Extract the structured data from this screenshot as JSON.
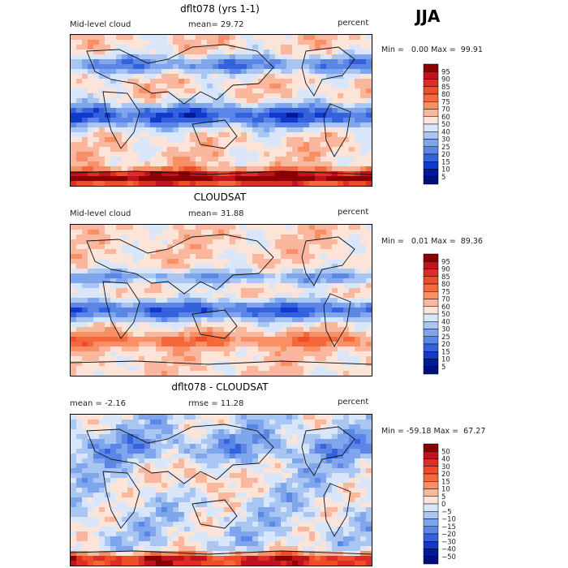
{
  "season": "JJA",
  "panels": [
    {
      "title": "dflt078 (yrs 1-1)",
      "left_label": "Mid-level cloud",
      "mean_label": "mean=  29.72",
      "units": "percent",
      "minmax": "Min =   0.00 Max =  99.91",
      "colorbar_levels": [
        "95",
        "90",
        "85",
        "80",
        "75",
        "70",
        "60",
        "50",
        "40",
        "30",
        "25",
        "20",
        "15",
        "10",
        "5"
      ]
    },
    {
      "title": "CLOUDSAT",
      "left_label": "Mid-level cloud",
      "mean_label": "mean=  31.88",
      "units": "percent",
      "minmax": "Min =   0.01 Max =  89.36",
      "colorbar_levels": [
        "95",
        "90",
        "85",
        "80",
        "75",
        "70",
        "60",
        "50",
        "40",
        "30",
        "25",
        "20",
        "15",
        "10",
        "5"
      ]
    },
    {
      "title": "dflt078 - CLOUDSAT",
      "left_label": "mean =   -2.16",
      "mean_label": "rmse =  11.28",
      "units": "percent",
      "minmax": "Min = -59.18 Max =  67.27",
      "colorbar_levels": [
        "50",
        "40",
        "30",
        "20",
        "15",
        "10",
        "5",
        "0",
        "−5",
        "−10",
        "−15",
        "−20",
        "−30",
        "−40",
        "−50"
      ]
    }
  ],
  "colors": {
    "abs_scale": [
      "#8b0000",
      "#c1121f",
      "#de2d26",
      "#ef4d2a",
      "#f4683d",
      "#f98f65",
      "#fbb79d",
      "#fde4d8",
      "#d9e6fa",
      "#a9c6f2",
      "#7fa6ec",
      "#5b86e6",
      "#3362dc",
      "#1238cc",
      "#001a99",
      "#00107a"
    ],
    "diff_scale": [
      "#8b0000",
      "#c1121f",
      "#de2d26",
      "#ef4d2a",
      "#f4683d",
      "#f98f65",
      "#fbb79d",
      "#fde4d8",
      "#d9e6fa",
      "#a9c6f2",
      "#7fa6ec",
      "#5b86e6",
      "#3362dc",
      "#1238cc",
      "#001a99",
      "#00107a"
    ]
  }
}
